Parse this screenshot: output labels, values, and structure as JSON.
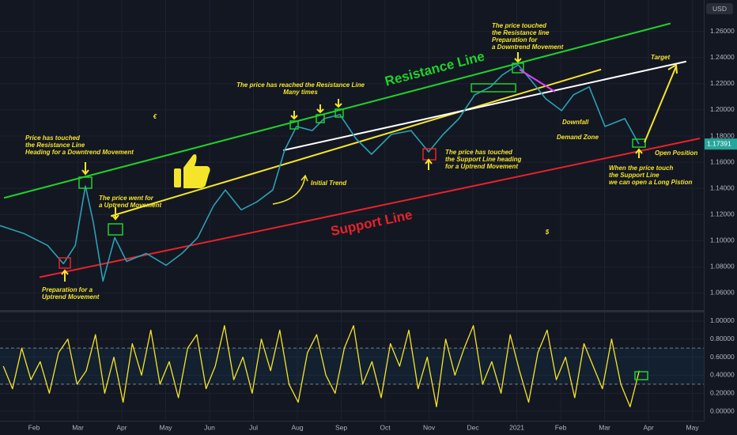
{
  "chart_data": [
    {
      "type": "line",
      "currency": "USD",
      "price_tag": "1.17391",
      "xlim": [
        0.225,
        16.26
      ],
      "ylim": [
        1.047,
        1.284
      ],
      "yticks": [
        {
          "value": 1.06,
          "label": "1.06000"
        },
        {
          "value": 1.08,
          "label": "1.08000"
        },
        {
          "value": 1.1,
          "label": "1.10000"
        },
        {
          "value": 1.12,
          "label": "1.12000"
        },
        {
          "value": 1.14,
          "label": "1.14000"
        },
        {
          "value": 1.16,
          "label": "1.16000"
        },
        {
          "value": 1.18,
          "label": "1.18000"
        },
        {
          "value": 1.2,
          "label": "1.20000"
        },
        {
          "value": 1.22,
          "label": "1.22000"
        },
        {
          "value": 1.24,
          "label": "1.24000"
        },
        {
          "value": 1.26,
          "label": "1.26000"
        }
      ],
      "grid": true,
      "series": [
        {
          "color": "#2aa1b3",
          "x": [
            0.225,
            0.77,
            1.31,
            1.67,
            1.94,
            2.17,
            2.35,
            2.57,
            2.84,
            3.11,
            3.56,
            4.01,
            4.37,
            4.73,
            5.09,
            5.36,
            5.72,
            6.08,
            6.44,
            6.71,
            6.98,
            7.34,
            7.61,
            7.97,
            8.33,
            8.69,
            9.14,
            9.59,
            9.99,
            10.32,
            10.68,
            11.04,
            11.4,
            11.67,
            12.03,
            12.3,
            12.66,
            13.02,
            13.29,
            13.65,
            14.01,
            14.46,
            14.78
          ],
          "values": [
            1.1115,
            1.1055,
            1.0964,
            1.0824,
            1.0964,
            1.1418,
            1.1145,
            1.0691,
            1.1024,
            1.0842,
            1.0903,
            1.0812,
            1.0903,
            1.1024,
            1.1267,
            1.1388,
            1.1236,
            1.1297,
            1.1388,
            1.1691,
            1.1873,
            1.1842,
            1.1933,
            1.1964,
            1.1782,
            1.1661,
            1.1812,
            1.1842,
            1.1679,
            1.1812,
            1.1933,
            1.2115,
            1.2176,
            1.2267,
            1.2345,
            1.2236,
            1.2085,
            1.1994,
            1.2115,
            1.2176,
            1.1873,
            1.1933,
            1.1739
          ]
        }
      ],
      "trendlines": [
        {
          "name": "Resistance Line",
          "color": "#1fd12b",
          "x": [
            0.315,
            15.5
          ],
          "y": [
            1.1327,
            1.2661
          ]
        },
        {
          "name": "Support Line",
          "color": "#e8222a",
          "x": [
            1.126,
            16.17
          ],
          "y": [
            1.0721,
            1.1782
          ]
        },
        {
          "color": "#f5e52a",
          "x": [
            2.75,
            13.92
          ],
          "y": [
            1.1188,
            1.2309
          ]
        },
        {
          "color": "#ffffff",
          "x": [
            6.68,
            15.86
          ],
          "y": [
            1.1691,
            1.237
          ]
        }
      ],
      "annotations": [
        {
          "lines": [
            "Price has touched",
            "the Resistance Line",
            "Heading for a Downtrend Movement"
          ]
        },
        {
          "lines": [
            "The price went for",
            "a Uptrend Movement"
          ]
        },
        {
          "lines": [
            "Preparation for a",
            "Uptrend Movement"
          ]
        },
        {
          "lines": [
            "The price has reached the Resistance Line",
            "Many times"
          ]
        },
        {
          "lines": [
            "Initial Trend"
          ]
        },
        {
          "lines": [
            "The price has touched",
            "the Support Line heading",
            "for a Uptrend Movement"
          ]
        },
        {
          "lines": [
            "The price touched",
            "the Resistance line",
            "Preparation for",
            "a Downtrend Movement"
          ]
        },
        {
          "lines": [
            "Target"
          ]
        },
        {
          "lines": [
            "Downfall"
          ]
        },
        {
          "lines": [
            "Demand Zone"
          ]
        },
        {
          "lines": [
            "Open Position"
          ]
        },
        {
          "lines": [
            "When the price touch",
            "the Support Line",
            "we can open a Long Pistion"
          ]
        },
        {
          "lines": [
            "€"
          ]
        },
        {
          "lines": [
            "$"
          ]
        }
      ]
    },
    {
      "type": "line",
      "xlim": [
        0.225,
        16.26
      ],
      "xticks": [
        {
          "value": 1,
          "label": "Feb"
        },
        {
          "value": 2,
          "label": "Mar"
        },
        {
          "value": 3,
          "label": "Apr"
        },
        {
          "value": 4,
          "label": "May"
        },
        {
          "value": 5,
          "label": "Jun"
        },
        {
          "value": 6,
          "label": "Jul"
        },
        {
          "value": 7,
          "label": "Aug"
        },
        {
          "value": 8,
          "label": "Sep"
        },
        {
          "value": 9,
          "label": "Oct"
        },
        {
          "value": 10,
          "label": "Nov"
        },
        {
          "value": 11,
          "label": "Dec"
        },
        {
          "value": 12,
          "label": "2021"
        },
        {
          "value": 13,
          "label": "Feb"
        },
        {
          "value": 14,
          "label": "Mar"
        },
        {
          "value": 15,
          "label": "Apr"
        },
        {
          "value": 16,
          "label": "May"
        }
      ],
      "ylim": [
        -0.105,
        1.096
      ],
      "yticks": [
        {
          "value": 0,
          "label": "0.00000"
        },
        {
          "value": 0.2,
          "label": "0.20000"
        },
        {
          "value": 0.4,
          "label": "0.40000"
        },
        {
          "value": 0.6,
          "label": "0.60000"
        },
        {
          "value": 0.8,
          "label": "0.80000"
        },
        {
          "value": 1,
          "label": "1.00000"
        }
      ],
      "levels": [
        0.3,
        0.7
      ],
      "series": [
        {
          "color": "#f5e52a",
          "x": [
            0.3,
            0.51,
            0.72,
            0.93,
            1.14,
            1.35,
            1.56,
            1.77,
            1.98,
            2.19,
            2.4,
            2.61,
            2.82,
            3.03,
            3.24,
            3.45,
            3.66,
            3.87,
            4.08,
            4.29,
            4.5,
            4.71,
            4.92,
            5.13,
            5.34,
            5.55,
            5.76,
            5.97,
            6.18,
            6.39,
            6.6,
            6.81,
            7.02,
            7.23,
            7.44,
            7.65,
            7.86,
            8.07,
            8.28,
            8.49,
            8.7,
            8.91,
            9.12,
            9.33,
            9.54,
            9.75,
            9.96,
            10.17,
            10.38,
            10.59,
            10.8,
            11.01,
            11.22,
            11.43,
            11.64,
            11.85,
            12.06,
            12.27,
            12.48,
            12.69,
            12.9,
            13.11,
            13.32,
            13.53,
            13.74,
            13.95,
            14.16,
            14.37,
            14.58,
            14.79
          ],
          "values": [
            0.5,
            0.25,
            0.7,
            0.35,
            0.55,
            0.2,
            0.65,
            0.8,
            0.3,
            0.45,
            0.85,
            0.2,
            0.6,
            0.1,
            0.75,
            0.4,
            0.9,
            0.3,
            0.55,
            0.15,
            0.7,
            0.85,
            0.25,
            0.5,
            0.95,
            0.35,
            0.6,
            0.2,
            0.8,
            0.45,
            0.9,
            0.3,
            0.1,
            0.65,
            0.85,
            0.4,
            0.2,
            0.7,
            0.95,
            0.3,
            0.55,
            0.15,
            0.75,
            0.5,
            0.9,
            0.25,
            0.6,
            0.05,
            0.8,
            0.4,
            0.7,
            0.95,
            0.3,
            0.55,
            0.2,
            0.85,
            0.45,
            0.1,
            0.65,
            0.9,
            0.35,
            0.6,
            0.15,
            0.75,
            0.5,
            0.25,
            0.8,
            0.3,
            0.05,
            0.45
          ]
        }
      ]
    }
  ]
}
